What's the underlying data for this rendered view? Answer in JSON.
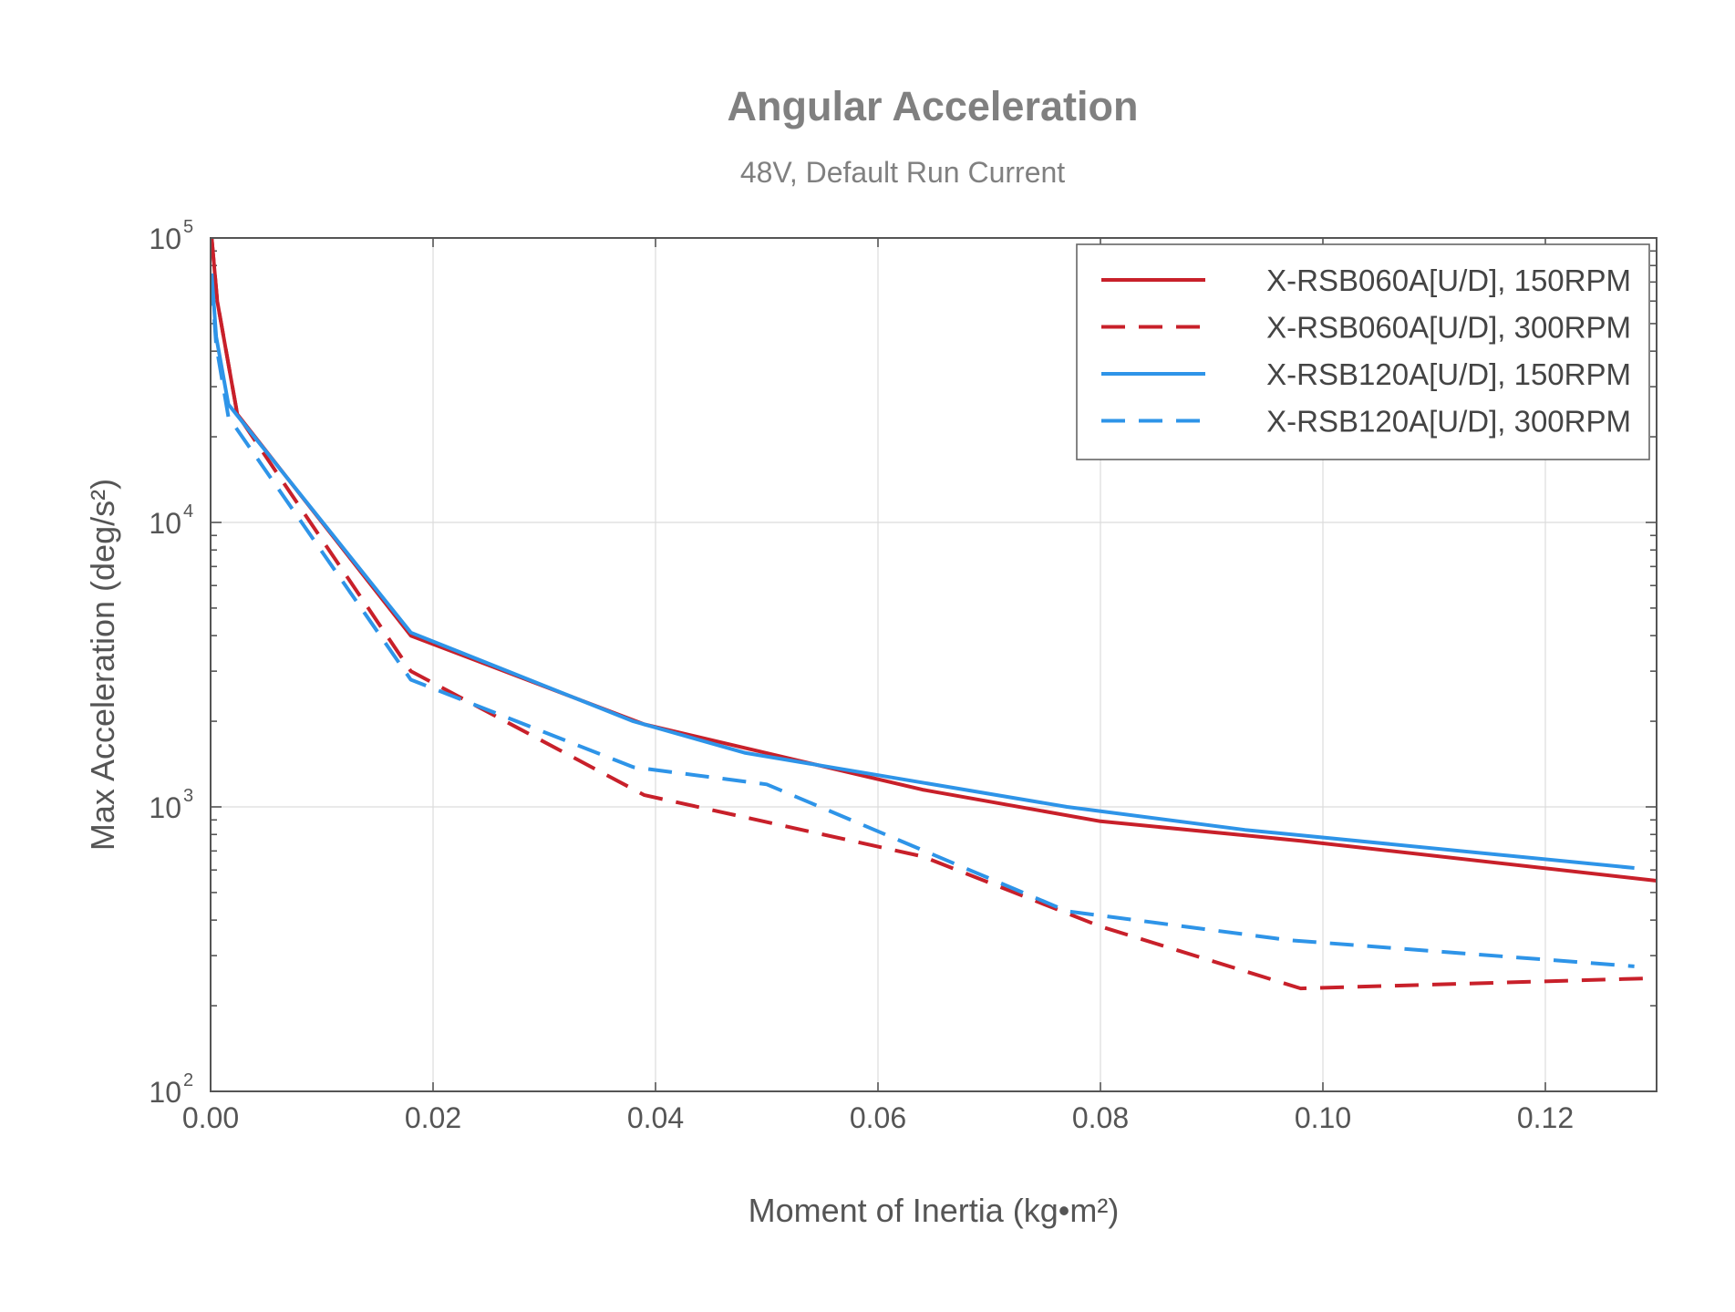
{
  "chart_data": {
    "type": "line",
    "title": "Angular Acceleration",
    "subtitle": "48V, Default Run Current",
    "xlabel": "Moment of Inertia (kg•m²)",
    "ylabel": "Max Acceleration (deg/s²)",
    "xlim": [
      0,
      0.13
    ],
    "ylim": [
      100,
      100000
    ],
    "yscale": "log",
    "grid": true,
    "legend_position": "top-right",
    "x_ticks": [
      "0.00",
      "0.02",
      "0.04",
      "0.06",
      "0.08",
      "0.10",
      "0.12"
    ],
    "y_ticks": [
      {
        "base": "10",
        "exp": "2",
        "value": 100
      },
      {
        "base": "10",
        "exp": "3",
        "value": 1000
      },
      {
        "base": "10",
        "exp": "4",
        "value": 10000
      },
      {
        "base": "10",
        "exp": "5",
        "value": 100000
      }
    ],
    "series": [
      {
        "name": "X-RSB060A[U/D], 150RPM",
        "color": "#c8202a",
        "dash": "solid",
        "points": [
          [
            0.0001,
            100000
          ],
          [
            0.0006,
            60000
          ],
          [
            0.0024,
            24000
          ],
          [
            0.018,
            4000
          ],
          [
            0.039,
            1950
          ],
          [
            0.064,
            1150
          ],
          [
            0.08,
            890
          ],
          [
            0.098,
            760
          ],
          [
            0.13,
            550
          ]
        ]
      },
      {
        "name": "X-RSB060A[U/D], 300RPM",
        "color": "#c8202a",
        "dash": "dashed",
        "points": [
          [
            0.0001,
            100000
          ],
          [
            0.0006,
            60000
          ],
          [
            0.0024,
            24000
          ],
          [
            0.018,
            3000
          ],
          [
            0.039,
            1100
          ],
          [
            0.064,
            670
          ],
          [
            0.08,
            380
          ],
          [
            0.098,
            230
          ],
          [
            0.13,
            250
          ]
        ]
      },
      {
        "name": "X-RSB120A[U/D], 150RPM",
        "color": "#2e94e8",
        "dash": "solid",
        "points": [
          [
            0.0001,
            75000
          ],
          [
            0.0005,
            45000
          ],
          [
            0.0016,
            26000
          ],
          [
            0.018,
            4100
          ],
          [
            0.038,
            2000
          ],
          [
            0.048,
            1550
          ],
          [
            0.077,
            1000
          ],
          [
            0.093,
            830
          ],
          [
            0.128,
            610
          ]
        ]
      },
      {
        "name": "X-RSB120A[U/D], 300RPM",
        "color": "#2e94e8",
        "dash": "dashed",
        "points": [
          [
            0.0001,
            70000
          ],
          [
            0.0005,
            42000
          ],
          [
            0.0016,
            23500
          ],
          [
            0.018,
            2800
          ],
          [
            0.038,
            1380
          ],
          [
            0.05,
            1200
          ],
          [
            0.077,
            430
          ],
          [
            0.097,
            340
          ],
          [
            0.128,
            275
          ]
        ]
      }
    ]
  }
}
